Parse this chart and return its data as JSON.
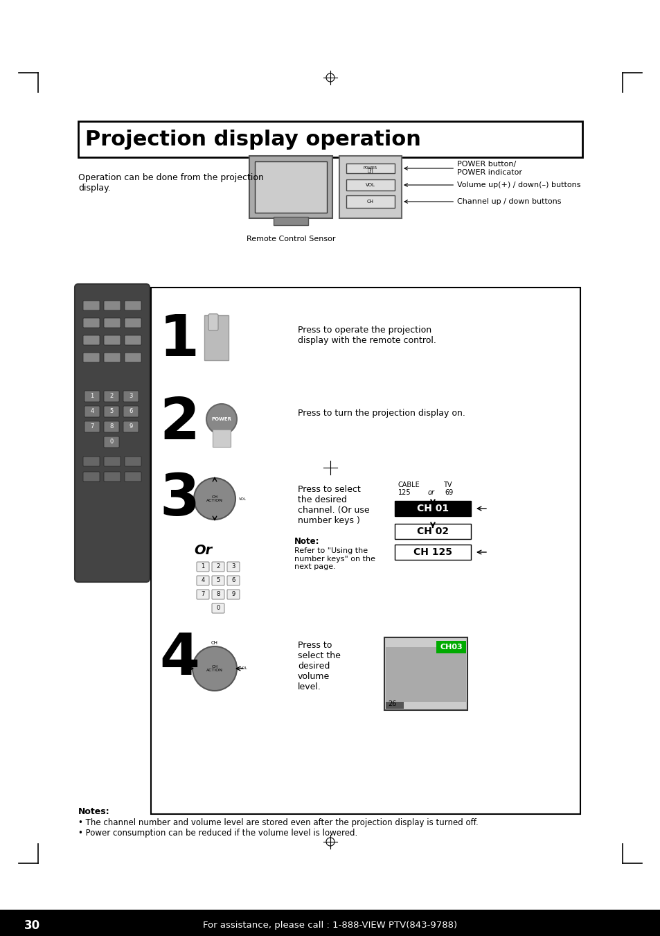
{
  "title": "Projection display operation",
  "page_number": "30",
  "footer_text": "For assistance, please call : 1-888-VIEW PTV(843-9788)",
  "bg_color": "#ffffff",
  "text_color": "#000000",
  "header_bg": "#000000",
  "header_text_color": "#ffffff",
  "notes_title": "Notes:",
  "notes": [
    "The channel number and volume level are stored even after the projection display is turned off.",
    "Power consumption can be reduced if the volume level is lowered."
  ],
  "intro_text": "Operation can be done from the projection\ndisplay.",
  "remote_sensor_text": "Remote Control Sensor",
  "power_button_text": "POWER button/\nPOWER indicator",
  "volume_text": "Volume up(+) / down(–) buttons",
  "channel_text": "Channel up / down buttons",
  "step1_num": "1",
  "step1_text": "Press to operate the projection\ndisplay with the remote control.",
  "step2_num": "2",
  "step2_text": "Press to turn the projection display on.",
  "step3_num": "3",
  "step3_text": "Press to select\nthe desired\nchannel. (Or use\nnumber keys )",
  "step4_num": "4",
  "step4_text": "Press to\nselect the\ndesired\nvolume\nlevel.",
  "or_text": "Or",
  "note_label": "Note:",
  "note_text": "Refer to \"Using the\nnumber keys\" on the\nnext page.",
  "cable_tv_label": "CABLE    TV\n 125   or   69",
  "ch01_text": "CH 01",
  "ch02_text": "CH 02",
  "ch125_text": "CH 125",
  "ch03_text": "CH03",
  "vol_level": "26"
}
